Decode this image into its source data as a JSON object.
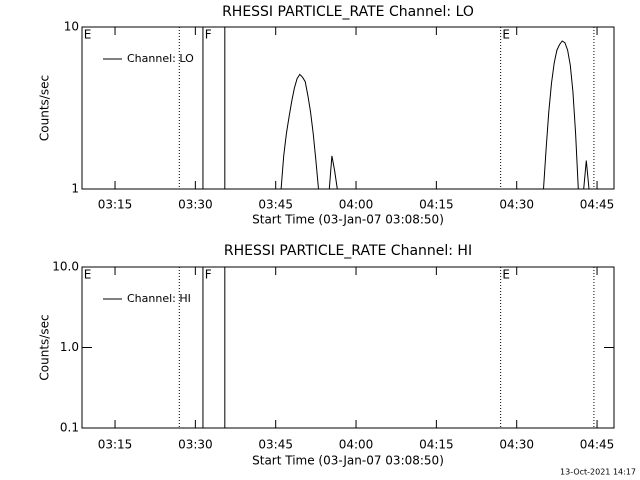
{
  "chart_data": [
    {
      "type": "line",
      "title": "RHESSI PARTICLE_RATE Channel: LO",
      "xlabel": "Start Time (03-Jan-07 03:08:50)",
      "ylabel": "Counts/sec",
      "log_y": true,
      "ylim": [
        1,
        10
      ],
      "yticks": [
        1,
        10
      ],
      "xlim": [
        "03:08:50",
        "04:48:10"
      ],
      "xticks": [
        "03:15",
        "03:30",
        "03:45",
        "04:00",
        "04:15",
        "04:30",
        "04:45"
      ],
      "legend": "upper left",
      "x": [
        "03:08:50",
        "03:46:00",
        "03:46:30",
        "03:47:00",
        "03:47:30",
        "03:48:00",
        "03:48:30",
        "03:49:00",
        "03:49:30",
        "03:50:00",
        "03:50:30",
        "03:51:00",
        "03:51:30",
        "03:52:00",
        "03:52:30",
        "03:53:00",
        "03:55:00",
        "03:55:30",
        "03:56:00",
        "03:56:30",
        "04:35:00",
        "04:35:30",
        "04:36:00",
        "04:36:30",
        "04:37:00",
        "04:37:30",
        "04:38:00",
        "04:38:30",
        "04:39:00",
        "04:39:30",
        "04:40:00",
        "04:40:30",
        "04:41:00",
        "04:41:30",
        "04:42:30",
        "04:43:00",
        "04:43:30",
        "04:48:10"
      ],
      "series": [
        {
          "name": "Channel: LO",
          "color": "#000000",
          "values": [
            1,
            1,
            1.6,
            2.2,
            2.8,
            3.5,
            4.2,
            4.8,
            5.1,
            4.9,
            4.6,
            3.8,
            3,
            2.2,
            1.5,
            1,
            1,
            1.6,
            1.3,
            1,
            1,
            1.8,
            3,
            4.5,
            6,
            7.2,
            7.8,
            8.2,
            8,
            7.2,
            5.8,
            4,
            2.2,
            1,
            1,
            1.5,
            1,
            1
          ]
        }
      ],
      "markers": [
        {
          "x": "03:27:00",
          "style": "dotted"
        },
        {
          "x": "03:31:25",
          "style": "solid"
        },
        {
          "x": "03:35:30",
          "style": "solid"
        },
        {
          "x": "04:27:00",
          "style": "dotted"
        },
        {
          "x": "04:44:25",
          "style": "dotted"
        }
      ],
      "flags": [
        {
          "x": "03:09:10",
          "text": "E"
        },
        {
          "x": "03:31:45",
          "text": "F"
        },
        {
          "x": "04:27:20",
          "text": "E"
        }
      ]
    },
    {
      "type": "line",
      "title": "RHESSI PARTICLE_RATE Channel: HI",
      "xlabel": "Start Time (03-Jan-07 03:08:50)",
      "ylabel": "Counts/sec",
      "log_y": true,
      "ylim": [
        0.1,
        10
      ],
      "yticks": [
        0.1,
        {
          "value": 1,
          "label": "1.0"
        },
        {
          "value": 10,
          "label": "10.0"
        }
      ],
      "xlim": [
        "03:08:50",
        "04:48:10"
      ],
      "xticks": [
        "03:15",
        "03:30",
        "03:45",
        "04:00",
        "04:15",
        "04:30",
        "04:45"
      ],
      "legend": "upper left",
      "x": [
        "03:08:50",
        "04:48:10"
      ],
      "series": [
        {
          "name": "Channel: HI",
          "color": "#000000",
          "values": [
            0.1,
            0.1
          ]
        }
      ],
      "markers": [
        {
          "x": "03:27:00",
          "style": "dotted"
        },
        {
          "x": "03:31:25",
          "style": "solid"
        },
        {
          "x": "03:35:30",
          "style": "solid"
        },
        {
          "x": "04:27:00",
          "style": "dotted"
        },
        {
          "x": "04:44:25",
          "style": "dotted"
        }
      ],
      "flags": [
        {
          "x": "03:09:10",
          "text": "E"
        },
        {
          "x": "03:31:45",
          "text": "F"
        },
        {
          "x": "04:27:20",
          "text": "E"
        }
      ]
    }
  ],
  "footer": "13-Oct-2021 14:17"
}
